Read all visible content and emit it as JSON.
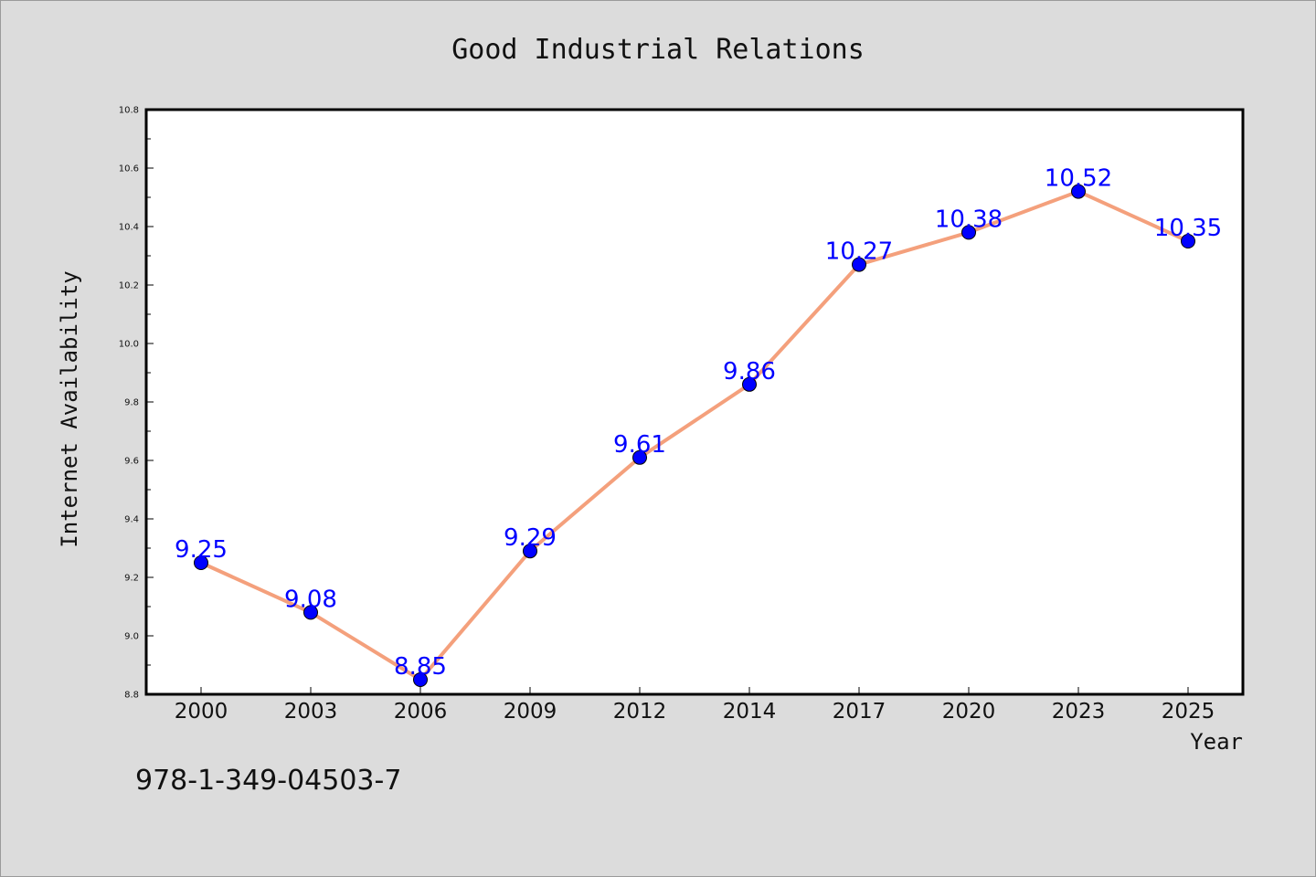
{
  "chart_data": {
    "type": "line",
    "title": "Good Industrial Relations",
    "xlabel": "Year",
    "ylabel": "Internet Availability",
    "categories": [
      "2000",
      "2003",
      "2006",
      "2009",
      "2012",
      "2014",
      "2017",
      "2020",
      "2023",
      "2025"
    ],
    "series": [
      {
        "values": [
          9.25,
          9.08,
          8.85,
          9.29,
          9.61,
          9.86,
          10.27,
          10.38,
          10.52,
          10.35
        ],
        "line_color": "#f4a07c",
        "marker_color": "#0000ff"
      }
    ],
    "ylim": [
      8.8,
      10.8
    ],
    "yticks": [
      8.8,
      9.0,
      9.2,
      9.4,
      9.6,
      9.8,
      10.0,
      10.2,
      10.4,
      10.6,
      10.8
    ],
    "data_labels": true,
    "data_label_color": "#0000ff",
    "grid": false,
    "legend": "none"
  },
  "footer": {
    "isbn": "978-1-349-04503-7"
  }
}
